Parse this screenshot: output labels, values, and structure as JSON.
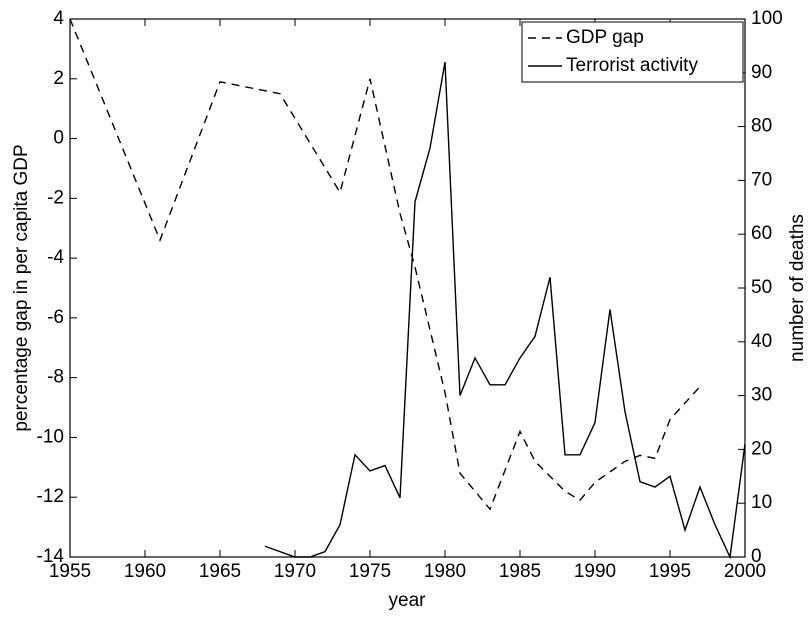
{
  "chart_data": {
    "type": "line",
    "xlabel": "year",
    "ylabel": "percentage gap in per capita GDP",
    "y2label": "number of deaths",
    "xlim": [
      1955,
      2000
    ],
    "xticks": [
      1955,
      1960,
      1965,
      1970,
      1975,
      1980,
      1985,
      1990,
      1995,
      2000
    ],
    "ylim": [
      -14,
      4
    ],
    "yticks": [
      -14,
      -12,
      -10,
      -8,
      -6,
      -4,
      -2,
      0,
      2,
      4
    ],
    "y2lim": [
      0,
      100
    ],
    "y2ticks": [
      0,
      10,
      20,
      30,
      40,
      50,
      60,
      70,
      80,
      90,
      100
    ],
    "legend": "upper right",
    "series": [
      {
        "name": "GDP gap",
        "color": "#000000",
        "dash": "dashed",
        "x": [
          1955,
          1961,
          1965,
          1969,
          1973,
          1975,
          1977,
          1978,
          1980,
          1981,
          1983,
          1985,
          1986,
          1988,
          1989,
          1990,
          1992,
          1993,
          1994,
          1995,
          1997
        ],
        "values": [
          4,
          -3.4,
          1.9,
          1.5,
          -1.8,
          2.0,
          -2.5,
          -4.3,
          -8.5,
          -11.2,
          -12.4,
          -9.8,
          -10.8,
          -11.8,
          -12.1,
          -11.5,
          -10.8,
          -10.6,
          -10.7,
          -9.4,
          -8.3
        ]
      },
      {
        "name": "Terrorist activity",
        "color": "#000000",
        "dash": "solid",
        "axis": "y2",
        "x": [
          1968,
          1970,
          1971,
          1972,
          1973,
          1974,
          1975,
          1976,
          1977,
          1978,
          1979,
          1980,
          1981,
          1982,
          1983,
          1984,
          1985,
          1986,
          1987,
          1988,
          1989,
          1990,
          1991,
          1992,
          1993,
          1994,
          1995,
          1996,
          1997,
          1998,
          1999,
          2000
        ],
        "values": [
          2,
          0,
          0,
          1,
          6,
          19,
          16,
          17,
          11,
          66,
          76,
          92,
          30,
          37,
          32,
          32,
          37,
          41,
          52,
          19,
          19,
          25,
          46,
          27,
          14,
          13,
          15,
          5,
          13,
          6,
          0,
          21
        ]
      }
    ]
  }
}
